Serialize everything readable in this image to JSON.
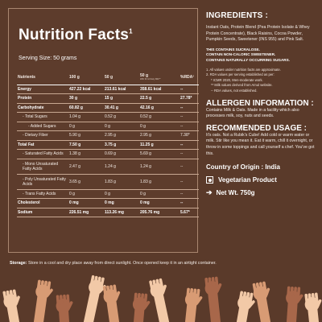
{
  "nutrition": {
    "title": "Nutrition Facts",
    "title_sup": "1",
    "serving": "Serving Size: 50 grams",
    "headers": [
      "Nutrients",
      "100 g",
      "50 g",
      "50 g",
      "%RDA²"
    ],
    "header_note": "With 60 ml Dairy Milk**",
    "rows": [
      {
        "name": "Energy",
        "v1": "427.22 kcal",
        "v2": "213.61 kcal",
        "v3": "358.61 kcal",
        "rda": "--",
        "bold": true,
        "level": 0
      },
      {
        "name": "Protein",
        "v1": "30 g",
        "v2": "15 g",
        "v3": "22.5 g",
        "rda": "27.78*",
        "bold": true,
        "level": 0
      },
      {
        "name": "Carbohydrate",
        "v1": "60.82 g",
        "v2": "30.41 g",
        "v3": "42.16 g",
        "rda": "--",
        "bold": true,
        "level": 0
      },
      {
        "name": "- Total Sugars",
        "v1": "1.04 g",
        "v2": "0.52 g",
        "v3": "0.52 g",
        "rda": "--",
        "bold": false,
        "level": 1
      },
      {
        "name": "- Added Sugars",
        "v1": "0 g",
        "v2": "0 g",
        "v3": "0 g",
        "rda": "--",
        "bold": false,
        "level": 2
      },
      {
        "name": "- Dietary Fiber",
        "v1": "5.90 g",
        "v2": "2.95 g",
        "v3": "2.95 g",
        "rda": "7.38*",
        "bold": false,
        "level": 1
      },
      {
        "name": "Total Fat",
        "v1": "7.50 g",
        "v2": "3.75 g",
        "v3": "11.25 g",
        "rda": "--",
        "bold": true,
        "level": 0
      },
      {
        "name": "- Saturated Fatty Acids",
        "v1": "1.38 g",
        "v2": "0.69 g",
        "v3": "5.69 g",
        "rda": "--",
        "bold": false,
        "level": 1
      },
      {
        "name": "- Mono Unsaturated Fatty Acids",
        "v1": "2.47 g",
        "v2": "1.24 g",
        "v3": "1.24 g",
        "rda": "--",
        "bold": false,
        "level": 1,
        "tall": true
      },
      {
        "name": "- Poly Unsaturated Fatty Acids",
        "v1": "3.65 g",
        "v2": "1.83 g",
        "v3": "1.83 g",
        "rda": "--",
        "bold": false,
        "level": 1,
        "tall": true
      },
      {
        "name": "- Trans Fatty Acids",
        "v1": "0 g",
        "v2": "0 g",
        "v3": "0 g",
        "rda": "--",
        "bold": false,
        "level": 1
      },
      {
        "name": "Cholesterol",
        "v1": "0 mg",
        "v2": "0 mg",
        "v3": "0 mg",
        "rda": "--",
        "bold": true,
        "level": 0
      },
      {
        "name": "Sodium",
        "v1": "226.51 mg",
        "v2": "113.26 mg",
        "v3": "205.76 mg",
        "rda": "5.67*",
        "bold": true,
        "level": 0
      }
    ]
  },
  "ingredients": {
    "heading": "INGREDIENTS :",
    "text": "Instant Oats, Protein Blend (Pea Protein Isolate & Whey Protein Concentrate), Black Raisins, Cocoa Powder, Pumpkin Seeds, Sweetener (INS 955) and Pink Salt.",
    "callouts": [
      "THIS CONTAINS SUCRALOSE.",
      "CONTAIN NON-CALORIC SWEETENER.",
      "CONTAINS NATURALLY OCCURRING SUGARS."
    ],
    "notes": [
      {
        "text": "1. All values under nutrition facts are approximate.",
        "sub": false
      },
      {
        "text": "2. RDA values per serving established as per:",
        "sub": false
      },
      {
        "text": "* ICMR 2020, Men-moderate work.",
        "sub": true
      },
      {
        "text": "** Milk values derived from Amul website.",
        "sub": true
      },
      {
        "text": "-- RDA values, not established.",
        "sub": true
      }
    ]
  },
  "allergen": {
    "heading": "ALLERGEN INFORMATION :",
    "text": "Contains Milk & Oats. Made in a facility which also processes milk, soy, nuts and seeds."
  },
  "usage": {
    "heading": "RECOMMENDED USAGE :",
    "text": "It's oats. Not a Rubik's Cube! Add cold or warm water or milk. Stir like you mean it. Eat it warm, chill it overnight, or throw in some toppings and call yourself a chef. You've got this."
  },
  "country": "Country of Origin : India",
  "veg": "Vegetarian Product",
  "net_wt": "Net Wt. 750g",
  "storage": {
    "label": "Storage:",
    "text": " Store in a cool and dry place away from direct sunlight. Once opened keep it in an airtight container."
  },
  "colors": {
    "background": "#5a3a2a",
    "skin_light": "#f2c9a7",
    "skin_mid": "#d89b74",
    "skin_dark": "#a8674a"
  }
}
